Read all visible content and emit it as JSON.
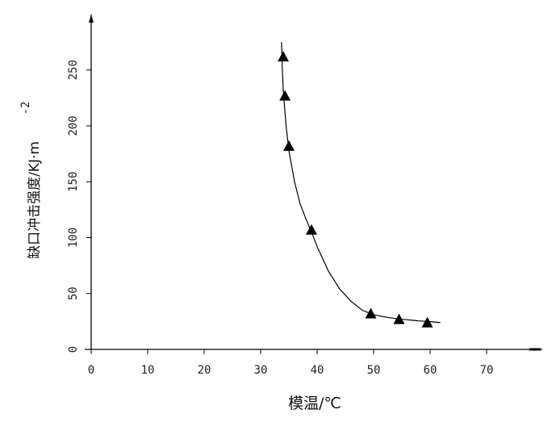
{
  "chart_data": {
    "type": "scatter",
    "xlabel": "模温/℃",
    "ylabel": "缺口冲击强度/KJ·m",
    "ylabel_superscript": "-2",
    "xlim": [
      0,
      80
    ],
    "ylim": [
      0,
      300
    ],
    "x_ticks": [
      0,
      10,
      20,
      30,
      40,
      50,
      60,
      70
    ],
    "y_ticks": [
      0,
      50,
      100,
      150,
      200,
      250
    ],
    "grid": false,
    "colors": {
      "axis": "#000000",
      "marker": "#000000",
      "curve": "#000000"
    },
    "marker": "triangle",
    "series": [
      {
        "x": [
          34,
          34.3,
          35,
          39,
          49.5,
          54.5,
          59.5
        ],
        "y": [
          262,
          227,
          182,
          107,
          32,
          27,
          24
        ]
      }
    ],
    "fit_curve": {
      "x": [
        33.7,
        33.8,
        34.0,
        34.5,
        35.0,
        36.0,
        37.0,
        38.0,
        39.0,
        40.0,
        42.0,
        44.0,
        46.0,
        48.0,
        50.0,
        52.0,
        54.0,
        56.0,
        58.0,
        60.0,
        61.8
      ],
      "y": [
        275,
        255,
        232,
        200,
        178,
        150,
        130,
        117,
        105,
        92,
        70,
        54,
        43,
        35,
        31,
        29,
        27.5,
        26.5,
        25.5,
        24.8,
        24
      ]
    }
  }
}
